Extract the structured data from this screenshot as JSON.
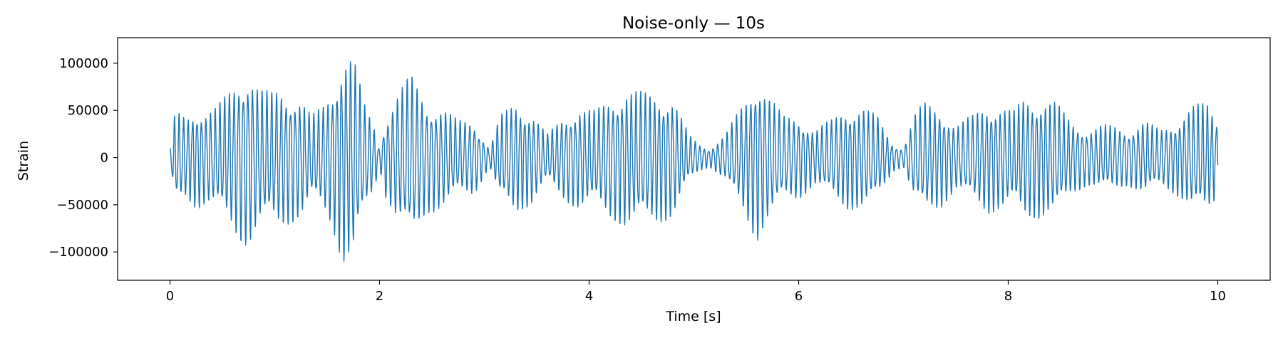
{
  "chart_data": {
    "type": "line",
    "title": "Noise-only — 10s",
    "xlabel": "Time [s]",
    "ylabel": "Strain",
    "xlim": [
      -0.5,
      10.5
    ],
    "ylim": [
      -130000,
      127000
    ],
    "xticks": [
      0,
      2,
      4,
      6,
      8,
      10
    ],
    "xtick_labels": [
      "0",
      "2",
      "4",
      "6",
      "8",
      "10"
    ],
    "yticks": [
      100000,
      50000,
      0,
      -50000,
      -100000
    ],
    "ytick_labels": [
      "100000",
      "50000",
      "0",
      "−50000",
      "−100000"
    ],
    "grid": false,
    "legend": "none",
    "series": [
      {
        "color": "#1f77b4",
        "approx_carrier_hz": 22.5,
        "envelope": [
          [
            0.0,
            10000
          ],
          [
            0.05,
            50000
          ],
          [
            0.15,
            45000
          ],
          [
            0.25,
            55000
          ],
          [
            0.35,
            50000
          ],
          [
            0.45,
            55000
          ],
          [
            0.55,
            70000
          ],
          [
            0.65,
            88000
          ],
          [
            0.75,
            95000
          ],
          [
            0.85,
            75000
          ],
          [
            0.95,
            70000
          ],
          [
            1.05,
            75000
          ],
          [
            1.15,
            70000
          ],
          [
            1.25,
            65000
          ],
          [
            1.35,
            45000
          ],
          [
            1.45,
            55000
          ],
          [
            1.55,
            75000
          ],
          [
            1.65,
            115000
          ],
          [
            1.75,
            110000
          ],
          [
            1.85,
            60000
          ],
          [
            1.95,
            35000
          ],
          [
            2.0,
            10000
          ],
          [
            2.05,
            40000
          ],
          [
            2.15,
            65000
          ],
          [
            2.3,
            90000
          ],
          [
            2.45,
            60000
          ],
          [
            2.6,
            55000
          ],
          [
            2.75,
            40000
          ],
          [
            2.9,
            40000
          ],
          [
            3.05,
            10000
          ],
          [
            3.15,
            45000
          ],
          [
            3.3,
            60000
          ],
          [
            3.45,
            50000
          ],
          [
            3.6,
            25000
          ],
          [
            3.75,
            45000
          ],
          [
            3.9,
            55000
          ],
          [
            4.05,
            50000
          ],
          [
            4.2,
            65000
          ],
          [
            4.35,
            75000
          ],
          [
            4.5,
            70000
          ],
          [
            4.65,
            70000
          ],
          [
            4.8,
            65000
          ],
          [
            4.95,
            25000
          ],
          [
            5.05,
            15000
          ],
          [
            5.15,
            10000
          ],
          [
            5.3,
            25000
          ],
          [
            5.45,
            55000
          ],
          [
            5.6,
            90000
          ],
          [
            5.7,
            70000
          ],
          [
            5.85,
            45000
          ],
          [
            6.0,
            45000
          ],
          [
            6.15,
            30000
          ],
          [
            6.3,
            40000
          ],
          [
            6.45,
            55000
          ],
          [
            6.6,
            55000
          ],
          [
            6.75,
            45000
          ],
          [
            6.9,
            15000
          ],
          [
            7.0,
            10000
          ],
          [
            7.1,
            45000
          ],
          [
            7.2,
            60000
          ],
          [
            7.35,
            55000
          ],
          [
            7.5,
            35000
          ],
          [
            7.65,
            45000
          ],
          [
            7.8,
            60000
          ],
          [
            7.95,
            55000
          ],
          [
            8.05,
            50000
          ],
          [
            8.15,
            65000
          ],
          [
            8.3,
            65000
          ],
          [
            8.45,
            60000
          ],
          [
            8.6,
            40000
          ],
          [
            8.75,
            30000
          ],
          [
            8.9,
            35000
          ],
          [
            9.0,
            35000
          ],
          [
            9.15,
            30000
          ],
          [
            9.3,
            40000
          ],
          [
            9.45,
            30000
          ],
          [
            9.6,
            40000
          ],
          [
            9.75,
            55000
          ],
          [
            9.9,
            60000
          ],
          [
            10.0,
            42000
          ]
        ]
      }
    ]
  }
}
